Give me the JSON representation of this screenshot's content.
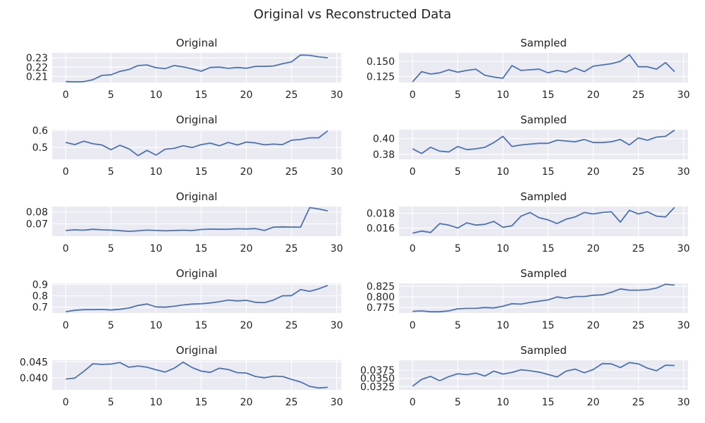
{
  "figure": {
    "title": "Original vs Reconstructed Data"
  },
  "chart_data": [
    {
      "type": "line",
      "title": "Original",
      "xlim": [
        -1.5,
        30.5
      ],
      "ylim": [
        0.2035,
        0.2355
      ],
      "xticks": [
        0,
        5,
        10,
        15,
        20,
        25,
        30
      ],
      "yticks": [
        0.21,
        0.22,
        0.23
      ],
      "ytick_labels": [
        "0.21",
        "0.22",
        "0.23"
      ],
      "x": [
        0,
        1,
        2,
        3,
        4,
        5,
        6,
        7,
        8,
        9,
        10,
        11,
        12,
        13,
        14,
        15,
        16,
        17,
        18,
        19,
        20,
        21,
        22,
        23,
        24,
        25,
        26,
        27,
        28,
        29
      ],
      "series": [
        {
          "values": [
            0.2045,
            0.2042,
            0.2044,
            0.2065,
            0.2112,
            0.2117,
            0.2155,
            0.2175,
            0.2218,
            0.2225,
            0.2195,
            0.2185,
            0.2218,
            0.2203,
            0.2183,
            0.2157,
            0.2197,
            0.2201,
            0.2188,
            0.2197,
            0.2189,
            0.2209,
            0.2209,
            0.2213,
            0.2238,
            0.2258,
            0.2332,
            0.2328,
            0.2312,
            0.2302
          ]
        }
      ]
    },
    {
      "type": "line",
      "title": "Sampled",
      "xlim": [
        -1.5,
        30.5
      ],
      "ylim": [
        0.115,
        0.164
      ],
      "xticks": [
        0,
        5,
        10,
        15,
        20,
        25,
        30
      ],
      "yticks": [
        0.125,
        0.15
      ],
      "ytick_labels": [
        "0.125",
        "0.150"
      ],
      "x": [
        0,
        1,
        2,
        3,
        4,
        5,
        6,
        7,
        8,
        9,
        10,
        11,
        12,
        13,
        14,
        15,
        16,
        17,
        18,
        19,
        20,
        21,
        22,
        23,
        24,
        25,
        26,
        27,
        28,
        29
      ],
      "series": [
        {
          "values": [
            0.116,
            0.133,
            0.129,
            0.131,
            0.136,
            0.132,
            0.135,
            0.137,
            0.127,
            0.124,
            0.122,
            0.143,
            0.135,
            0.136,
            0.137,
            0.131,
            0.135,
            0.132,
            0.139,
            0.133,
            0.142,
            0.144,
            0.146,
            0.15,
            0.161,
            0.141,
            0.141,
            0.137,
            0.148,
            0.133
          ]
        }
      ]
    },
    {
      "type": "line",
      "title": "Original",
      "xlim": [
        -1.5,
        30.5
      ],
      "ylim": [
        0.43,
        0.605
      ],
      "xticks": [
        0,
        5,
        10,
        15,
        20,
        25,
        30
      ],
      "yticks": [
        0.5,
        0.6
      ],
      "ytick_labels": [
        "0.5",
        "0.6"
      ],
      "x": [
        0,
        1,
        2,
        3,
        4,
        5,
        6,
        7,
        8,
        9,
        10,
        11,
        12,
        13,
        14,
        15,
        16,
        17,
        18,
        19,
        20,
        21,
        22,
        23,
        24,
        25,
        26,
        27,
        28,
        29
      ],
      "series": [
        {
          "values": [
            0.53,
            0.517,
            0.537,
            0.522,
            0.515,
            0.487,
            0.513,
            0.492,
            0.452,
            0.483,
            0.455,
            0.49,
            0.495,
            0.51,
            0.5,
            0.517,
            0.526,
            0.51,
            0.53,
            0.515,
            0.532,
            0.527,
            0.516,
            0.52,
            0.517,
            0.543,
            0.547,
            0.557,
            0.557,
            0.598
          ]
        }
      ]
    },
    {
      "type": "line",
      "title": "Sampled",
      "xlim": [
        -1.5,
        30.5
      ],
      "ylim": [
        0.3735,
        0.4115
      ],
      "xticks": [
        0,
        5,
        10,
        15,
        20,
        25,
        30
      ],
      "yticks": [
        0.38,
        0.4
      ],
      "ytick_labels": [
        "0.38",
        "0.40"
      ],
      "x": [
        0,
        1,
        2,
        3,
        4,
        5,
        6,
        7,
        8,
        9,
        10,
        11,
        12,
        13,
        14,
        15,
        16,
        17,
        18,
        19,
        20,
        21,
        22,
        23,
        24,
        25,
        26,
        27,
        28,
        29
      ],
      "series": [
        {
          "values": [
            0.387,
            0.381,
            0.389,
            0.384,
            0.383,
            0.39,
            0.386,
            0.387,
            0.389,
            0.395,
            0.403,
            0.39,
            0.392,
            0.393,
            0.394,
            0.394,
            0.398,
            0.397,
            0.396,
            0.399,
            0.395,
            0.395,
            0.396,
            0.399,
            0.392,
            0.401,
            0.398,
            0.402,
            0.403,
            0.411
          ]
        }
      ]
    },
    {
      "type": "line",
      "title": "Original",
      "xlim": [
        -1.5,
        30.5
      ],
      "ylim": [
        0.0597,
        0.0845
      ],
      "xticks": [
        0,
        5,
        10,
        15,
        20,
        25,
        30
      ],
      "yticks": [
        0.07,
        0.08
      ],
      "ytick_labels": [
        "0.07",
        "0.08"
      ],
      "x": [
        0,
        1,
        2,
        3,
        4,
        5,
        6,
        7,
        8,
        9,
        10,
        11,
        12,
        13,
        14,
        15,
        16,
        17,
        18,
        19,
        20,
        21,
        22,
        23,
        24,
        25,
        26,
        27,
        28,
        29
      ],
      "series": [
        {
          "values": [
            0.0645,
            0.065,
            0.0647,
            0.0655,
            0.065,
            0.0648,
            0.0643,
            0.0638,
            0.0642,
            0.0648,
            0.0645,
            0.0642,
            0.0644,
            0.0647,
            0.0644,
            0.0653,
            0.0656,
            0.0655,
            0.0655,
            0.0659,
            0.0657,
            0.0661,
            0.0645,
            0.0673,
            0.0675,
            0.0673,
            0.0673,
            0.0836,
            0.0825,
            0.0809
          ]
        }
      ]
    },
    {
      "type": "line",
      "title": "Sampled",
      "xlim": [
        -1.5,
        30.5
      ],
      "ylim": [
        0.0149,
        0.0189
      ],
      "xticks": [
        0,
        5,
        10,
        15,
        20,
        25,
        30
      ],
      "yticks": [
        0.016,
        0.018
      ],
      "ytick_labels": [
        "0.016",
        "0.018"
      ],
      "x": [
        0,
        1,
        2,
        3,
        4,
        5,
        6,
        7,
        8,
        9,
        10,
        11,
        12,
        13,
        14,
        15,
        16,
        17,
        18,
        19,
        20,
        21,
        22,
        23,
        24,
        25,
        26,
        27,
        28,
        29
      ],
      "series": [
        {
          "values": [
            0.0153,
            0.0156,
            0.0154,
            0.0166,
            0.0164,
            0.016,
            0.0167,
            0.0164,
            0.0165,
            0.0169,
            0.0161,
            0.0163,
            0.0176,
            0.0181,
            0.0174,
            0.0171,
            0.0166,
            0.0172,
            0.0175,
            0.0181,
            0.0179,
            0.0181,
            0.0182,
            0.0168,
            0.0184,
            0.0179,
            0.0182,
            0.0176,
            0.0175,
            0.0188
          ]
        }
      ]
    },
    {
      "type": "line",
      "title": "Original",
      "xlim": [
        -1.5,
        30.5
      ],
      "ylim": [
        0.648,
        0.91
      ],
      "xticks": [
        0,
        5,
        10,
        15,
        20,
        25,
        30
      ],
      "yticks": [
        0.7,
        0.8,
        0.9
      ],
      "ytick_labels": [
        "0.7",
        "0.8",
        "0.9"
      ],
      "x": [
        0,
        1,
        2,
        3,
        4,
        5,
        6,
        7,
        8,
        9,
        10,
        11,
        12,
        13,
        14,
        15,
        16,
        17,
        18,
        19,
        20,
        21,
        22,
        23,
        24,
        25,
        26,
        27,
        28,
        29
      ],
      "series": [
        {
          "values": [
            0.66,
            0.672,
            0.678,
            0.678,
            0.68,
            0.675,
            0.681,
            0.692,
            0.715,
            0.728,
            0.702,
            0.7,
            0.708,
            0.72,
            0.727,
            0.73,
            0.737,
            0.748,
            0.763,
            0.755,
            0.76,
            0.743,
            0.74,
            0.763,
            0.8,
            0.802,
            0.855,
            0.84,
            0.862,
            0.892
          ]
        }
      ]
    },
    {
      "type": "line",
      "title": "Sampled",
      "xlim": [
        -1.5,
        30.5
      ],
      "ylim": [
        0.762,
        0.832
      ],
      "xticks": [
        0,
        5,
        10,
        15,
        20,
        25,
        30
      ],
      "yticks": [
        0.775,
        0.8,
        0.825
      ],
      "ytick_labels": [
        "0.775",
        "0.800",
        "0.825"
      ],
      "x": [
        0,
        1,
        2,
        3,
        4,
        5,
        6,
        7,
        8,
        9,
        10,
        11,
        12,
        13,
        14,
        15,
        16,
        17,
        18,
        19,
        20,
        21,
        22,
        23,
        24,
        25,
        26,
        27,
        28,
        29
      ],
      "series": [
        {
          "values": [
            0.766,
            0.767,
            0.765,
            0.765,
            0.767,
            0.772,
            0.773,
            0.773,
            0.775,
            0.774,
            0.778,
            0.784,
            0.783,
            0.787,
            0.79,
            0.793,
            0.8,
            0.797,
            0.801,
            0.801,
            0.804,
            0.805,
            0.811,
            0.819,
            0.816,
            0.816,
            0.817,
            0.821,
            0.83,
            0.828
          ]
        }
      ]
    },
    {
      "type": "line",
      "title": "Original",
      "xlim": [
        -1.5,
        30.5
      ],
      "ylim": [
        0.0362,
        0.0455
      ],
      "xticks": [
        0,
        5,
        10,
        15,
        20,
        25,
        30
      ],
      "yticks": [
        0.04,
        0.045
      ],
      "ytick_labels": [
        "0.040",
        "0.045"
      ],
      "x": [
        0,
        1,
        2,
        3,
        4,
        5,
        6,
        7,
        8,
        9,
        10,
        11,
        12,
        13,
        14,
        15,
        16,
        17,
        18,
        19,
        20,
        21,
        22,
        23,
        24,
        25,
        26,
        27,
        28,
        29
      ],
      "series": [
        {
          "values": [
            0.0396,
            0.0399,
            0.042,
            0.0444,
            0.0442,
            0.0443,
            0.0448,
            0.0433,
            0.0437,
            0.0433,
            0.0425,
            0.0418,
            0.043,
            0.0449,
            0.0432,
            0.0421,
            0.0417,
            0.043,
            0.0426,
            0.0416,
            0.0415,
            0.0404,
            0.04,
            0.0405,
            0.0404,
            0.0395,
            0.0387,
            0.0373,
            0.0368,
            0.037
          ]
        }
      ]
    },
    {
      "type": "line",
      "title": "Sampled",
      "xlim": [
        -1.5,
        30.5
      ],
      "ylim": [
        0.0315,
        0.0405
      ],
      "xticks": [
        0,
        5,
        10,
        15,
        20,
        25,
        30
      ],
      "yticks": [
        0.0325,
        0.035,
        0.0375
      ],
      "ytick_labels": [
        "0.0325",
        "0.0350",
        "0.0375"
      ],
      "x": [
        0,
        1,
        2,
        3,
        4,
        5,
        6,
        7,
        8,
        9,
        10,
        11,
        12,
        13,
        14,
        15,
        16,
        17,
        18,
        19,
        20,
        21,
        22,
        23,
        24,
        25,
        26,
        27,
        28,
        29
      ],
      "series": [
        {
          "values": [
            0.0326,
            0.0347,
            0.0356,
            0.0343,
            0.0355,
            0.0364,
            0.0361,
            0.0366,
            0.0357,
            0.0372,
            0.0363,
            0.0368,
            0.0376,
            0.0373,
            0.0369,
            0.0362,
            0.0354,
            0.0372,
            0.0378,
            0.0367,
            0.0377,
            0.0395,
            0.0394,
            0.0383,
            0.0398,
            0.0394,
            0.0381,
            0.0373,
            0.039,
            0.0389
          ]
        }
      ]
    }
  ]
}
